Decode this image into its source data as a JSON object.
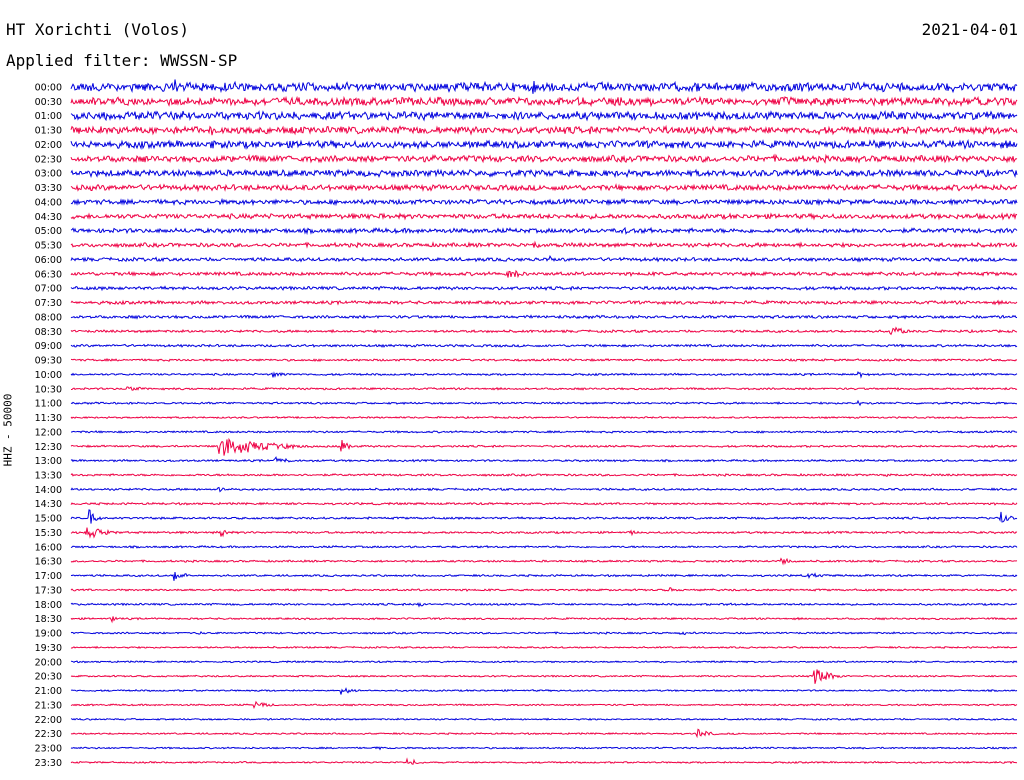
{
  "header": {
    "station": "HT Xorichti (Volos)",
    "date": "2021-04-01",
    "filter_label": "Applied filter:",
    "filter_value": "WWSSN-SP"
  },
  "colors": {
    "trace_a": "#0000dd",
    "trace_b": "#ee0044",
    "text": "#000000"
  },
  "chart_data": {
    "type": "line",
    "subtype": "helicorder",
    "ylabel": "HHZ - 50000",
    "y_tick_labels": [
      "00:00",
      "00:30",
      "01:00",
      "01:30",
      "02:00",
      "02:30",
      "03:00",
      "03:30",
      "04:00",
      "04:30",
      "05:00",
      "05:30",
      "06:00",
      "06:30",
      "07:00",
      "07:30",
      "08:00",
      "08:30",
      "09:00",
      "09:30",
      "10:00",
      "10:30",
      "11:00",
      "11:30",
      "12:00",
      "12:30",
      "13:00",
      "13:30",
      "14:00",
      "14:30",
      "15:00",
      "15:30",
      "16:00",
      "16:30",
      "17:00",
      "17:30",
      "18:00",
      "18:30",
      "19:00",
      "19:30",
      "20:00",
      "20:30",
      "21:00",
      "21:30",
      "22:00",
      "22:30",
      "23:00",
      "23:30"
    ],
    "line_duration_minutes": 30,
    "x_range_minutes": [
      0,
      30
    ],
    "alternating_colors": [
      "blue",
      "red"
    ],
    "noise_level": [
      0.55,
      0.5,
      0.5,
      0.45,
      0.45,
      0.4,
      0.4,
      0.35,
      0.3,
      0.3,
      0.28,
      0.25,
      0.22,
      0.22,
      0.2,
      0.2,
      0.18,
      0.15,
      0.15,
      0.13,
      0.12,
      0.12,
      0.12,
      0.1,
      0.12,
      0.12,
      0.12,
      0.13,
      0.13,
      0.13,
      0.13,
      0.13,
      0.12,
      0.12,
      0.12,
      0.12,
      0.12,
      0.11,
      0.11,
      0.1,
      0.1,
      0.1,
      0.1,
      0.1,
      0.1,
      0.1,
      0.1,
      0.1
    ],
    "events": [
      {
        "line": "00:00",
        "minute": 3.3,
        "amplitude": 1.0,
        "duration_minutes": 0.3
      },
      {
        "line": "00:00",
        "minute": 6.7,
        "amplitude": 0.6,
        "duration_minutes": 1.2
      },
      {
        "line": "00:00",
        "minute": 14.7,
        "amplitude": 0.9,
        "duration_minutes": 0.4
      },
      {
        "line": "00:30",
        "minute": 2.3,
        "amplitude": 0.8,
        "duration_minutes": 0.4
      },
      {
        "line": "00:30",
        "minute": 14.7,
        "amplitude": 0.8,
        "duration_minutes": 0.6
      },
      {
        "line": "00:30",
        "minute": 24.0,
        "amplitude": 0.6,
        "duration_minutes": 0.4
      },
      {
        "line": "01:00",
        "minute": 3.6,
        "amplitude": 0.7,
        "duration_minutes": 0.6
      },
      {
        "line": "01:30",
        "minute": 4.5,
        "amplitude": 0.7,
        "duration_minutes": 0.3
      },
      {
        "line": "02:00",
        "minute": 4.5,
        "amplitude": 0.8,
        "duration_minutes": 0.3
      },
      {
        "line": "02:00",
        "minute": 11.0,
        "amplitude": 0.6,
        "duration_minutes": 0.3
      },
      {
        "line": "02:30",
        "minute": 11.0,
        "amplitude": 0.5,
        "duration_minutes": 0.3
      },
      {
        "line": "04:30",
        "minute": 9.5,
        "amplitude": 0.5,
        "duration_minutes": 0.5
      },
      {
        "line": "05:00",
        "minute": 17.5,
        "amplitude": 0.5,
        "duration_minutes": 0.6
      },
      {
        "line": "05:30",
        "minute": 14.7,
        "amplitude": 0.6,
        "duration_minutes": 0.8
      },
      {
        "line": "06:00",
        "minute": 15.2,
        "amplitude": 0.5,
        "duration_minutes": 0.3
      },
      {
        "line": "06:30",
        "minute": 13.9,
        "amplitude": 0.8,
        "duration_minutes": 0.8
      },
      {
        "line": "08:30",
        "minute": 26.0,
        "amplitude": 0.9,
        "duration_minutes": 0.8
      },
      {
        "line": "10:00",
        "minute": 6.4,
        "amplitude": 0.5,
        "duration_minutes": 0.7
      },
      {
        "line": "10:00",
        "minute": 25.0,
        "amplitude": 0.45,
        "duration_minutes": 0.6
      },
      {
        "line": "10:30",
        "minute": 1.8,
        "amplitude": 0.4,
        "duration_minutes": 1.0
      },
      {
        "line": "11:00",
        "minute": 25.0,
        "amplitude": 0.35,
        "duration_minutes": 1.0
      },
      {
        "line": "12:30",
        "minute": 4.7,
        "amplitude": 1.4,
        "duration_minutes": 3.0
      },
      {
        "line": "12:30",
        "minute": 8.6,
        "amplitude": 0.8,
        "duration_minutes": 0.6
      },
      {
        "line": "13:00",
        "minute": 6.5,
        "amplitude": 0.4,
        "duration_minutes": 1.2
      },
      {
        "line": "13:30",
        "minute": 25.8,
        "amplitude": 0.4,
        "duration_minutes": 0.8
      },
      {
        "line": "14:00",
        "minute": 4.7,
        "amplitude": 0.3,
        "duration_minutes": 1.4
      },
      {
        "line": "15:00",
        "minute": 0.6,
        "amplitude": 1.4,
        "duration_minutes": 0.4
      },
      {
        "line": "15:00",
        "minute": 29.5,
        "amplitude": 0.9,
        "duration_minutes": 0.6
      },
      {
        "line": "15:30",
        "minute": 0.5,
        "amplitude": 0.9,
        "duration_minutes": 1.2
      },
      {
        "line": "15:30",
        "minute": 4.8,
        "amplitude": 1.0,
        "duration_minutes": 0.2
      },
      {
        "line": "15:30",
        "minute": 17.8,
        "amplitude": 0.3,
        "duration_minutes": 0.4
      },
      {
        "line": "16:30",
        "minute": 22.5,
        "amplitude": 0.6,
        "duration_minutes": 0.6
      },
      {
        "line": "17:00",
        "minute": 3.3,
        "amplitude": 0.7,
        "duration_minutes": 0.7
      },
      {
        "line": "17:00",
        "minute": 23.4,
        "amplitude": 0.45,
        "duration_minutes": 0.6
      },
      {
        "line": "17:30",
        "minute": 19.0,
        "amplitude": 0.4,
        "duration_minutes": 0.2
      },
      {
        "line": "18:00",
        "minute": 11.0,
        "amplitude": 0.5,
        "duration_minutes": 0.6
      },
      {
        "line": "18:00",
        "minute": 20.8,
        "amplitude": 0.25,
        "duration_minutes": 1.0
      },
      {
        "line": "18:30",
        "minute": 1.3,
        "amplitude": 0.6,
        "duration_minutes": 0.3
      },
      {
        "line": "19:00",
        "minute": 4.1,
        "amplitude": 0.2,
        "duration_minutes": 1.0
      },
      {
        "line": "19:00",
        "minute": 19.3,
        "amplitude": 0.25,
        "duration_minutes": 1.2
      },
      {
        "line": "20:30",
        "minute": 23.6,
        "amplitude": 1.0,
        "duration_minutes": 1.2
      },
      {
        "line": "21:00",
        "minute": 8.6,
        "amplitude": 0.45,
        "duration_minutes": 0.8
      },
      {
        "line": "21:30",
        "minute": 5.8,
        "amplitude": 0.6,
        "duration_minutes": 0.8
      },
      {
        "line": "22:30",
        "minute": 19.9,
        "amplitude": 0.6,
        "duration_minutes": 0.8
      },
      {
        "line": "23:00",
        "minute": 9.6,
        "amplitude": 0.25,
        "duration_minutes": 0.8
      },
      {
        "line": "23:30",
        "minute": 10.7,
        "amplitude": 0.45,
        "duration_minutes": 0.8
      }
    ]
  }
}
